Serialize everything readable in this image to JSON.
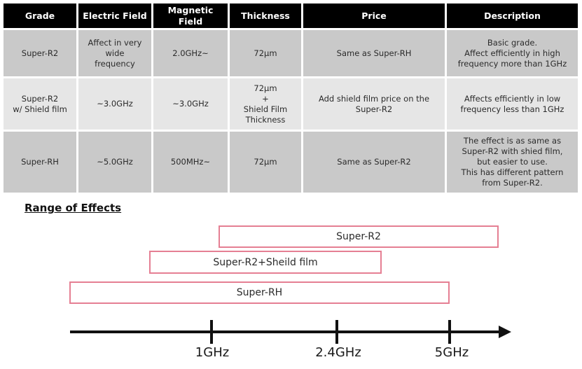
{
  "table": {
    "headers": [
      "Grade",
      "Electric Field",
      "Magnetic\nField",
      "Thickness",
      "Price",
      "Description"
    ],
    "rows": [
      {
        "grade": "Super-R2",
        "electric_field": "Affect in very\nwide\nfrequency",
        "magnetic_field": "2.0GHz~",
        "thickness": "72µm",
        "price": "Same as Super-RH",
        "description": "Basic grade.\nAffect efficiently in high\nfrequency more than 1GHz"
      },
      {
        "grade": "Super-R2\nw/ Shield film",
        "electric_field": "~3.0GHz",
        "magnetic_field": "~3.0GHz",
        "thickness": "72µm\n+\nShield Film\nThickness",
        "price": "Add shield film price on the\nSuper-R2",
        "description": "Affects efficiently in low\nfrequency less than 1GHz"
      },
      {
        "grade": "Super-RH",
        "electric_field": "~5.0GHz",
        "magnetic_field": "500MHz~",
        "thickness": "72µm",
        "price": "Same as Super-R2",
        "description": "The effect is as same as\nSuper-R2 with shied film,\nbut easier to use.\nThis has different pattern\nfrom Super-R2."
      }
    ]
  },
  "range_of_effects": {
    "title": "Range of Effects",
    "bars": [
      {
        "label": "Super-R2"
      },
      {
        "label": "Super-R2+Sheild film"
      },
      {
        "label": "Super-RH"
      }
    ],
    "axis_ticks": [
      {
        "label": "1GHz"
      },
      {
        "label": "2.4GHz"
      },
      {
        "label": "5GHz"
      }
    ]
  },
  "colors": {
    "header_bg": "#000000",
    "header_text": "#ffffff",
    "row_shaded": "#c9c9c9",
    "row_light": "#e6e6e6",
    "body_text": "#2b2b2b",
    "bar_outline_pink": "#e57f93",
    "axis_black": "#111111"
  }
}
